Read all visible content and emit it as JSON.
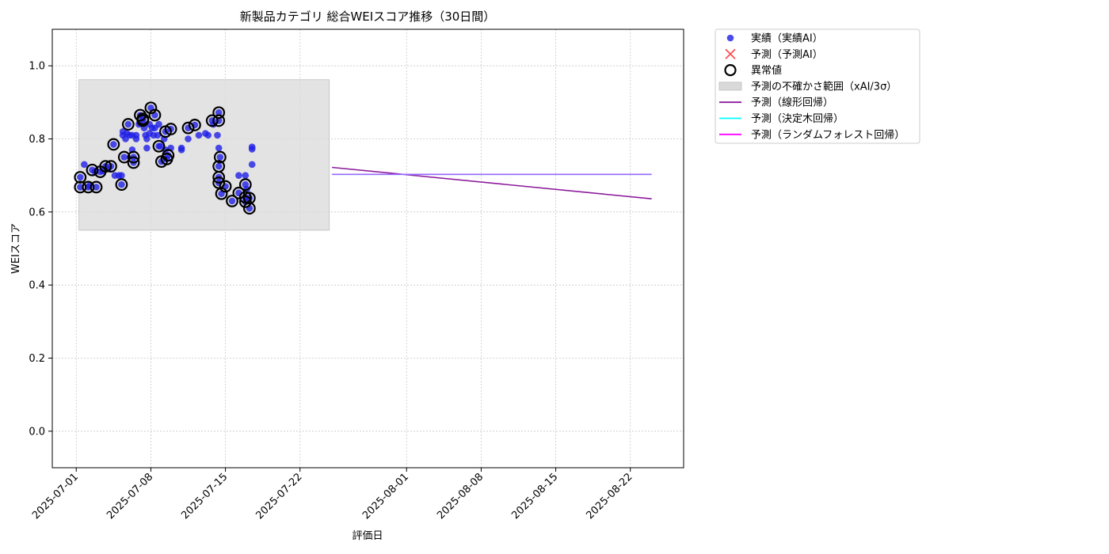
{
  "chart_data": {
    "type": "scatter",
    "title": "新製品カテゴリ 総合WEIスコア推移（30日間）",
    "xlabel": "評価日",
    "ylabel": "WEIスコア",
    "xlim": [
      "2025-06-28T18:00",
      "2025-08-27T00:00"
    ],
    "ylim": [
      -0.1,
      1.1
    ],
    "x_ticks": [
      "2025-07-01",
      "2025-07-08",
      "2025-07-15",
      "2025-07-22",
      "2025-08-01",
      "2025-08-08",
      "2025-08-15",
      "2025-08-22"
    ],
    "y_ticks": [
      "0.0",
      "0.2",
      "0.4",
      "0.6",
      "0.8",
      "1.0"
    ],
    "grid": true,
    "legend_position": "outside-top-right",
    "colors": {
      "actual": "#1f1fe6",
      "predicted_ai": "#ff3030",
      "anomaly": "#000000",
      "uncertainty": "#d9d9d9",
      "linear": "#8b1a9b",
      "decision_tree": "#00ffff",
      "random_forest": "#ff00ff"
    },
    "uncertainty_band": {
      "x_start": "2025-07-01T06:00",
      "x_end": "2025-07-24T18:00",
      "y_low": 0.55,
      "y_high": 0.962
    },
    "series": [
      {
        "name": "実績（実績AI）",
        "kind": "scatter",
        "points": [
          [
            "2025-07-01T09:00",
            0.695
          ],
          [
            "2025-07-01T09:00",
            0.668
          ],
          [
            "2025-07-01T18:00",
            0.73
          ],
          [
            "2025-07-02T03:00",
            0.668
          ],
          [
            "2025-07-02T06:00",
            0.672
          ],
          [
            "2025-07-02T12:00",
            0.715
          ],
          [
            "2025-07-02T18:00",
            0.71
          ],
          [
            "2025-07-02T21:00",
            0.668
          ],
          [
            "2025-07-03T06:00",
            0.71
          ],
          [
            "2025-07-03T12:00",
            0.712
          ],
          [
            "2025-07-03T18:00",
            0.725
          ],
          [
            "2025-07-04T00:00",
            0.718
          ],
          [
            "2025-07-04T06:00",
            0.725
          ],
          [
            "2025-07-04T12:00",
            0.785
          ],
          [
            "2025-07-04T15:00",
            0.7
          ],
          [
            "2025-07-05T00:00",
            0.7
          ],
          [
            "2025-07-05T06:00",
            0.675
          ],
          [
            "2025-07-05T06:00",
            0.7
          ],
          [
            "2025-07-05T09:00",
            0.81
          ],
          [
            "2025-07-05T09:00",
            0.82
          ],
          [
            "2025-07-05T12:00",
            0.75
          ],
          [
            "2025-07-05T15:00",
            0.8
          ],
          [
            "2025-07-05T18:00",
            0.815
          ],
          [
            "2025-07-05T21:00",
            0.84
          ],
          [
            "2025-07-06T00:00",
            0.81
          ],
          [
            "2025-07-06T06:00",
            0.77
          ],
          [
            "2025-07-06T06:00",
            0.81
          ],
          [
            "2025-07-06T09:00",
            0.75
          ],
          [
            "2025-07-06T09:00",
            0.735
          ],
          [
            "2025-07-06T15:00",
            0.8
          ],
          [
            "2025-07-06T15:00",
            0.81
          ],
          [
            "2025-07-06T21:00",
            0.84
          ],
          [
            "2025-07-07T00:00",
            0.865
          ],
          [
            "2025-07-07T06:00",
            0.855
          ],
          [
            "2025-07-07T06:00",
            0.85
          ],
          [
            "2025-07-07T09:00",
            0.83
          ],
          [
            "2025-07-07T12:00",
            0.81
          ],
          [
            "2025-07-07T15:00",
            0.775
          ],
          [
            "2025-07-07T15:00",
            0.8
          ],
          [
            "2025-07-07T21:00",
            0.84
          ],
          [
            "2025-07-07T21:00",
            0.815
          ],
          [
            "2025-07-08T00:00",
            0.885
          ],
          [
            "2025-07-08T03:00",
            0.83
          ],
          [
            "2025-07-08T06:00",
            0.81
          ],
          [
            "2025-07-08T09:00",
            0.865
          ],
          [
            "2025-07-08T09:00",
            0.83
          ],
          [
            "2025-07-08T15:00",
            0.81
          ],
          [
            "2025-07-08T18:00",
            0.78
          ],
          [
            "2025-07-08T18:00",
            0.84
          ],
          [
            "2025-07-08T21:00",
            0.78
          ],
          [
            "2025-07-09T00:00",
            0.738
          ],
          [
            "2025-07-09T06:00",
            0.8
          ],
          [
            "2025-07-09T09:00",
            0.77
          ],
          [
            "2025-07-09T09:00",
            0.82
          ],
          [
            "2025-07-09T12:00",
            0.745
          ],
          [
            "2025-07-09T15:00",
            0.755
          ],
          [
            "2025-07-09T21:00",
            0.775
          ],
          [
            "2025-07-09T21:00",
            0.827
          ],
          [
            "2025-07-10T21:00",
            0.775
          ],
          [
            "2025-07-10T21:00",
            0.77
          ],
          [
            "2025-07-11T12:00",
            0.8
          ],
          [
            "2025-07-11T12:00",
            0.83
          ],
          [
            "2025-07-12T03:00",
            0.838
          ],
          [
            "2025-07-12T12:00",
            0.81
          ],
          [
            "2025-07-13T03:00",
            0.815
          ],
          [
            "2025-07-13T09:00",
            0.81
          ],
          [
            "2025-07-13T18:00",
            0.85
          ],
          [
            "2025-07-13T21:00",
            0.84
          ],
          [
            "2025-07-14T06:00",
            0.81
          ],
          [
            "2025-07-14T09:00",
            0.872
          ],
          [
            "2025-07-14T09:00",
            0.85
          ],
          [
            "2025-07-14T09:00",
            0.775
          ],
          [
            "2025-07-14T09:00",
            0.725
          ],
          [
            "2025-07-14T09:00",
            0.695
          ],
          [
            "2025-07-14T09:00",
            0.68
          ],
          [
            "2025-07-14T12:00",
            0.75
          ],
          [
            "2025-07-14T15:00",
            0.65
          ],
          [
            "2025-07-15T00:00",
            0.67
          ],
          [
            "2025-07-15T15:00",
            0.63
          ],
          [
            "2025-07-16T06:00",
            0.7
          ],
          [
            "2025-07-16T06:00",
            0.652
          ],
          [
            "2025-07-16T21:00",
            0.675
          ],
          [
            "2025-07-16T21:00",
            0.7
          ],
          [
            "2025-07-16T21:00",
            0.64
          ],
          [
            "2025-07-16T21:00",
            0.628
          ],
          [
            "2025-07-17T00:00",
            0.662
          ],
          [
            "2025-07-17T06:00",
            0.61
          ],
          [
            "2025-07-17T06:00",
            0.638
          ],
          [
            "2025-07-17T12:00",
            0.73
          ],
          [
            "2025-07-17T12:00",
            0.772
          ],
          [
            "2025-07-17T12:00",
            0.778
          ]
        ]
      },
      {
        "name": "予測（予測AI）",
        "kind": "scatter-x",
        "points": []
      },
      {
        "name": "異常値",
        "kind": "ring",
        "points": [
          [
            "2025-07-01T09:00",
            0.695
          ],
          [
            "2025-07-01T09:00",
            0.668
          ],
          [
            "2025-07-02T03:00",
            0.668
          ],
          [
            "2025-07-02T12:00",
            0.715
          ],
          [
            "2025-07-02T21:00",
            0.668
          ],
          [
            "2025-07-03T06:00",
            0.71
          ],
          [
            "2025-07-03T18:00",
            0.725
          ],
          [
            "2025-07-04T06:00",
            0.725
          ],
          [
            "2025-07-04T12:00",
            0.785
          ],
          [
            "2025-07-05T06:00",
            0.675
          ],
          [
            "2025-07-05T12:00",
            0.75
          ],
          [
            "2025-07-05T21:00",
            0.84
          ],
          [
            "2025-07-06T09:00",
            0.75
          ],
          [
            "2025-07-06T09:00",
            0.735
          ],
          [
            "2025-07-07T00:00",
            0.865
          ],
          [
            "2025-07-07T06:00",
            0.855
          ],
          [
            "2025-07-07T06:00",
            0.85
          ],
          [
            "2025-07-08T00:00",
            0.885
          ],
          [
            "2025-07-08T09:00",
            0.865
          ],
          [
            "2025-07-08T18:00",
            0.78
          ],
          [
            "2025-07-09T00:00",
            0.738
          ],
          [
            "2025-07-09T09:00",
            0.82
          ],
          [
            "2025-07-09T12:00",
            0.745
          ],
          [
            "2025-07-09T15:00",
            0.755
          ],
          [
            "2025-07-09T21:00",
            0.827
          ],
          [
            "2025-07-12T03:00",
            0.838
          ],
          [
            "2025-07-11T12:00",
            0.83
          ],
          [
            "2025-07-13T18:00",
            0.85
          ],
          [
            "2025-07-14T09:00",
            0.872
          ],
          [
            "2025-07-14T09:00",
            0.85
          ],
          [
            "2025-07-14T09:00",
            0.725
          ],
          [
            "2025-07-14T09:00",
            0.695
          ],
          [
            "2025-07-14T09:00",
            0.68
          ],
          [
            "2025-07-14T12:00",
            0.75
          ],
          [
            "2025-07-14T15:00",
            0.65
          ],
          [
            "2025-07-15T00:00",
            0.67
          ],
          [
            "2025-07-15T15:00",
            0.63
          ],
          [
            "2025-07-16T06:00",
            0.652
          ],
          [
            "2025-07-16T21:00",
            0.675
          ],
          [
            "2025-07-16T21:00",
            0.64
          ],
          [
            "2025-07-16T21:00",
            0.628
          ],
          [
            "2025-07-17T06:00",
            0.61
          ],
          [
            "2025-07-17T06:00",
            0.638
          ]
        ]
      },
      {
        "name": "予測（線形回帰）",
        "kind": "line",
        "points": [
          [
            "2025-07-25T00:00",
            0.722
          ],
          [
            "2025-08-24T00:00",
            0.636
          ]
        ]
      },
      {
        "name": "予測（決定木回帰）",
        "kind": "line",
        "points": [
          [
            "2025-07-25T00:00",
            0.703
          ],
          [
            "2025-08-24T00:00",
            0.703
          ]
        ]
      },
      {
        "name": "予測（ランダムフォレスト回帰）",
        "kind": "line",
        "points": [
          [
            "2025-07-25T00:00",
            0.703
          ],
          [
            "2025-08-24T00:00",
            0.703
          ]
        ]
      }
    ],
    "legend": [
      {
        "key": "actual",
        "label": "実績（実績AI）",
        "marker": "dot"
      },
      {
        "key": "predicted_ai",
        "label": "予測（予測AI）",
        "marker": "x"
      },
      {
        "key": "anomaly",
        "label": "異常値",
        "marker": "ring"
      },
      {
        "key": "uncertainty",
        "label": "予測の不確かさ範囲（xAI/3σ）",
        "marker": "patch"
      },
      {
        "key": "linear",
        "label": "予測（線形回帰）",
        "marker": "line"
      },
      {
        "key": "decision_tree",
        "label": "予測（決定木回帰）",
        "marker": "line"
      },
      {
        "key": "random_forest",
        "label": "予測（ランダムフォレスト回帰）",
        "marker": "line"
      }
    ]
  }
}
